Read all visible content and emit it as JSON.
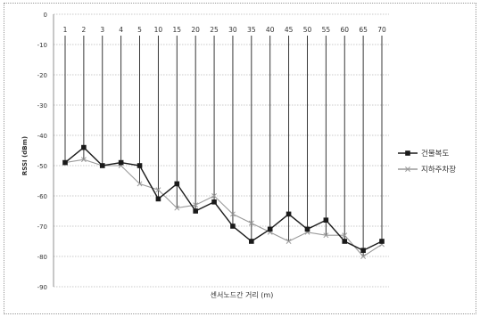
{
  "chart_data": {
    "type": "line",
    "categories": [
      "1",
      "2",
      "3",
      "4",
      "5",
      "10",
      "15",
      "20",
      "25",
      "30",
      "35",
      "40",
      "45",
      "50",
      "55",
      "60",
      "65",
      "70"
    ],
    "series": [
      {
        "name": "건물복도",
        "color": "#1a1a1a",
        "marker": "square",
        "values": [
          -49,
          -44,
          -50,
          -49,
          -50,
          -61,
          -56,
          -65,
          -62,
          -70,
          -75,
          -71,
          -66,
          -71,
          -68,
          -75,
          -78,
          -75
        ]
      },
      {
        "name": "지하주차장",
        "color": "#9a9a9a",
        "marker": "x",
        "values": [
          -49,
          -48,
          -50,
          -50,
          -56,
          -58,
          -64,
          -63,
          -60,
          -66,
          -69,
          -72,
          -75,
          -72,
          -73,
          -73,
          -80,
          -76
        ]
      }
    ],
    "ylabel": "RSSI (dBm)",
    "xlabel": "센서노드간 거리 (m)",
    "ylim": [
      -90,
      0
    ],
    "yticks": [
      0,
      -10,
      -20,
      -30,
      -40,
      -50,
      -60,
      -70,
      -80,
      -90
    ],
    "grid": true,
    "legend_position": "right"
  }
}
